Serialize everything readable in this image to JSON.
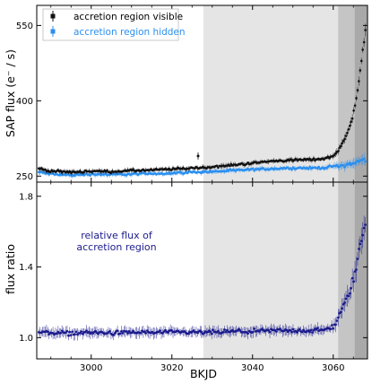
{
  "chart_data": [
    {
      "type": "scatter",
      "panel": "top",
      "xlabel": "",
      "ylabel": "SAP flux (e⁻ / s)",
      "xlim": [
        2986.5,
        3068.5
      ],
      "ylim": [
        238,
        590
      ],
      "y_ticks": [
        250,
        400,
        550
      ],
      "y_tick_labels": [
        "250",
        "400",
        "550"
      ],
      "grid": false,
      "legend_position": "top-left",
      "shaded_regions": [
        {
          "x0": 3027.8,
          "x1": 3061.2,
          "color": "#e5e5e5"
        },
        {
          "x0": 3061.2,
          "x1": 3065.3,
          "color": "#c5c5c5"
        },
        {
          "x0": 3065.3,
          "x1": 3068.5,
          "color": "#a9a9a9"
        }
      ],
      "series": [
        {
          "name": "accretion region visible",
          "color": "#111111",
          "x": [
            2987,
            2990,
            2995,
            3000,
            3005,
            3010,
            3015,
            3020,
            3025,
            3030,
            3035,
            3040,
            3045,
            3050,
            3055,
            3058,
            3060,
            3061,
            3062,
            3063,
            3064,
            3065,
            3066,
            3067,
            3068
          ],
          "y": [
            265,
            260,
            258,
            260,
            259,
            261,
            262,
            264,
            266,
            268,
            272,
            276,
            280,
            282,
            283,
            285,
            290,
            300,
            312,
            325,
            345,
            375,
            420,
            480,
            540
          ]
        },
        {
          "name": "accretion region hidden",
          "color": "#2a8ff0",
          "x": [
            2987,
            2990,
            2995,
            3000,
            3005,
            3010,
            3015,
            3020,
            3025,
            3030,
            3035,
            3040,
            3045,
            3050,
            3055,
            3058,
            3060,
            3062,
            3064,
            3066,
            3068
          ],
          "y": [
            258,
            254,
            252,
            254,
            253,
            254,
            255,
            256,
            258,
            259,
            261,
            263,
            265,
            266,
            266,
            267,
            269,
            271,
            274,
            278,
            284
          ]
        }
      ],
      "annotations": [
        {
          "x": 3026.5,
          "y": 290,
          "label": ""
        }
      ]
    },
    {
      "type": "scatter",
      "panel": "bottom",
      "xlabel": "BKJD",
      "ylabel": "flux ratio",
      "xlim": [
        2986.5,
        3068.5
      ],
      "ylim": [
        0.88,
        1.88
      ],
      "x_ticks": [
        3000,
        3020,
        3040,
        3060
      ],
      "x_tick_labels": [
        "3000",
        "3020",
        "3040",
        "3060"
      ],
      "y_ticks": [
        1.0,
        1.4,
        1.8
      ],
      "y_tick_labels": [
        "1.0",
        "1.4",
        "1.8"
      ],
      "grid": false,
      "series": [
        {
          "name": "",
          "color": "#1a1a8c",
          "x": [
            2987,
            2990,
            2995,
            3000,
            3005,
            3010,
            3015,
            3020,
            3025,
            3030,
            3035,
            3040,
            3045,
            3050,
            3055,
            3058,
            3060,
            3061,
            3062,
            3063,
            3064,
            3065,
            3066,
            3067,
            3068
          ],
          "y": [
            1.03,
            1.03,
            1.025,
            1.03,
            1.025,
            1.03,
            1.03,
            1.03,
            1.03,
            1.03,
            1.035,
            1.035,
            1.04,
            1.04,
            1.04,
            1.045,
            1.06,
            1.1,
            1.15,
            1.2,
            1.26,
            1.33,
            1.43,
            1.56,
            1.66
          ]
        }
      ],
      "annotation_text": [
        "relative flux of",
        "accretion region"
      ]
    }
  ]
}
